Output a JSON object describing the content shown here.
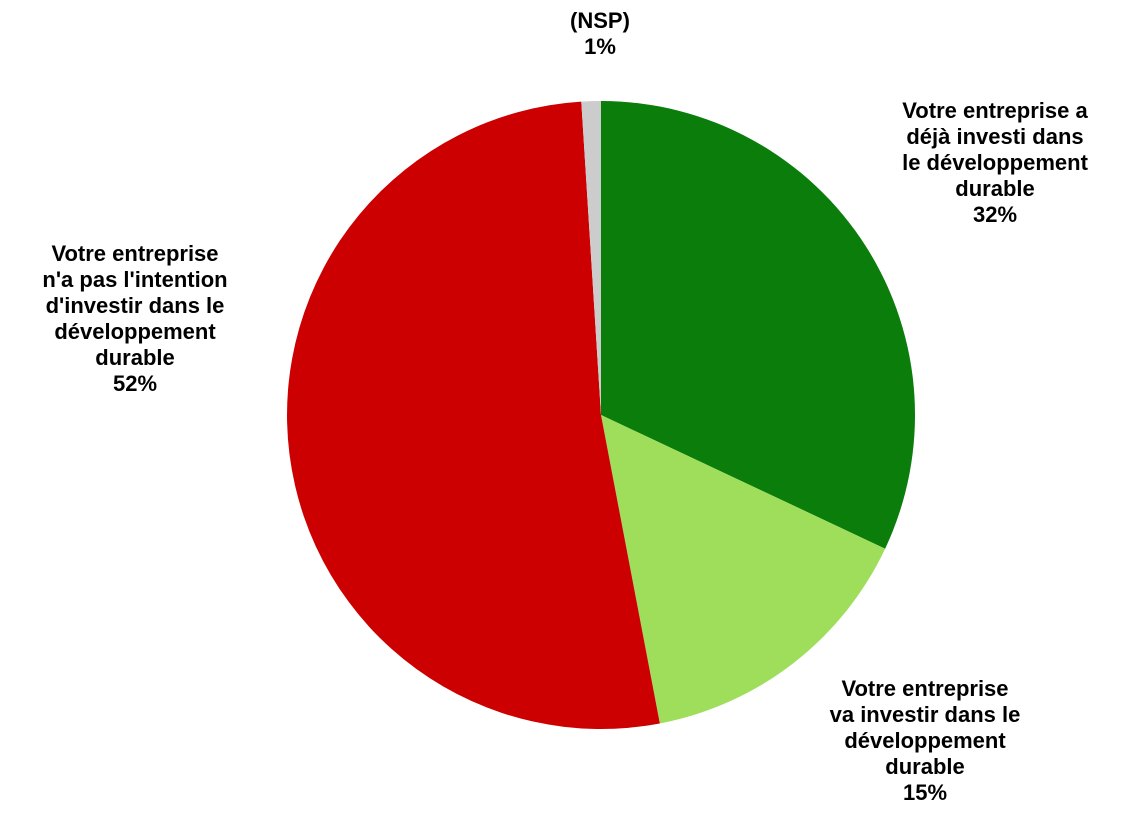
{
  "chart_data": {
    "type": "pie",
    "slices": [
      {
        "label": [
          "Votre entreprise a",
          "déjà investi dans",
          "le développement",
          "durable"
        ],
        "value": 32,
        "value_label": "32%",
        "color": "#0a7d0a"
      },
      {
        "label": [
          "Votre entreprise",
          "va investir dans le",
          "développement",
          "durable"
        ],
        "value": 15,
        "value_label": "15%",
        "color": "#9ede5b"
      },
      {
        "label": [
          "Votre entreprise",
          "n'a pas l'intention",
          "d'investir dans le",
          "développement",
          "durable"
        ],
        "value": 52,
        "value_label": "52%",
        "color": "#cc0000"
      },
      {
        "label": [
          "(NSP)"
        ],
        "value": 1,
        "value_label": "1%",
        "color": "#cccccc"
      }
    ],
    "start_angle_deg": 0,
    "direction": "clockwise"
  }
}
